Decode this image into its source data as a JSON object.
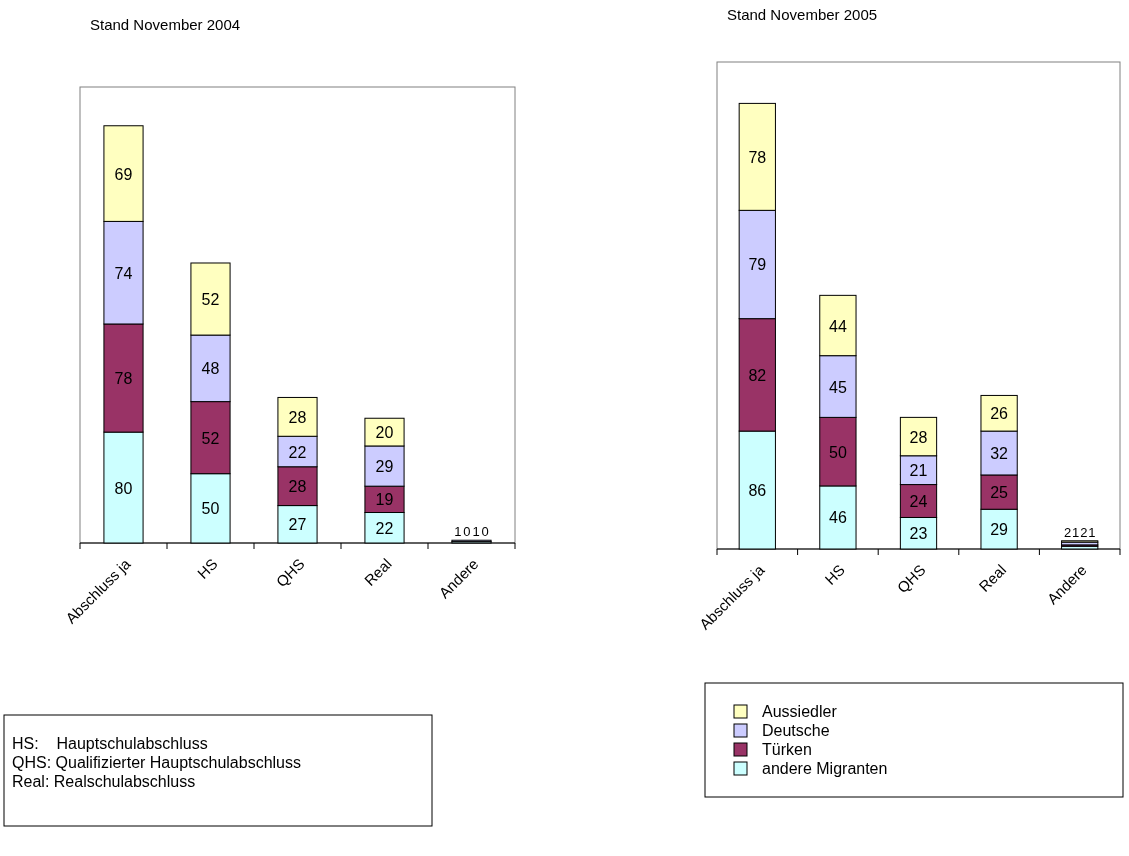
{
  "chart_data": [
    {
      "type": "bar",
      "stacked": true,
      "subtitle": "Stand November 2004",
      "categories": [
        "Abschluss ja",
        "HS",
        "QHS",
        "Real",
        "Andere"
      ],
      "data_labels": true,
      "legend": false,
      "series": [
        {
          "color": "#ccffff",
          "values": [
            80,
            50,
            27,
            22,
            1
          ]
        },
        {
          "color": "#993366",
          "values": [
            78,
            52,
            28,
            19,
            0
          ]
        },
        {
          "color": "#ccccff",
          "values": [
            74,
            48,
            22,
            29,
            1
          ]
        },
        {
          "color": "#ffffc0",
          "values": [
            69,
            52,
            28,
            20,
            0
          ]
        }
      ],
      "annotations": [
        "HS:    Hauptschulabschluss",
        "QHS: Qualifizierter Hauptschulabschluss",
        "Real: Realschulabschluss"
      ]
    },
    {
      "type": "bar",
      "stacked": true,
      "subtitle": "Stand November 2005",
      "categories": [
        "Abschluss ja",
        "HS",
        "QHS",
        "Real",
        "Andere"
      ],
      "data_labels": true,
      "legend": "bottom",
      "series": [
        {
          "name": "andere Migranten",
          "color": "#ccffff",
          "values": [
            86,
            46,
            23,
            29,
            2
          ]
        },
        {
          "name": "Türken",
          "color": "#993366",
          "values": [
            82,
            50,
            24,
            25,
            1
          ]
        },
        {
          "name": "Deutsche",
          "color": "#ccccff",
          "values": [
            79,
            45,
            21,
            32,
            2
          ]
        },
        {
          "name": "Aussiedler",
          "color": "#ffffc0",
          "values": [
            78,
            44,
            28,
            26,
            1
          ]
        }
      ]
    }
  ]
}
